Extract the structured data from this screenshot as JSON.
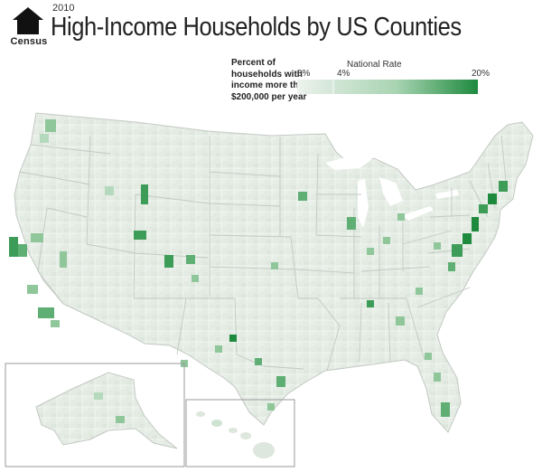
{
  "header": {
    "logo_text": "Census",
    "year": "2010",
    "title": "High-Income Households by US Counties"
  },
  "legend": {
    "description": "Percent of households with income more than $200,000 per year",
    "min_label": "0%",
    "national_rate_label": "National Rate",
    "national_rate_value": "4%",
    "max_label": "20%",
    "national_rate": 4,
    "range": [
      0,
      20
    ],
    "colors": {
      "low": "#e8efe8",
      "mid": "#a8d4b2",
      "high": "#1e8a3e"
    }
  },
  "map": {
    "colors": {
      "land": "#e3ebe3",
      "border": "#ffffff",
      "state_border": "#c3c9c3",
      "water": "#ffffff",
      "inset_frame": "#9a9a9a"
    },
    "insets": [
      "Alaska",
      "Hawaii"
    ]
  }
}
